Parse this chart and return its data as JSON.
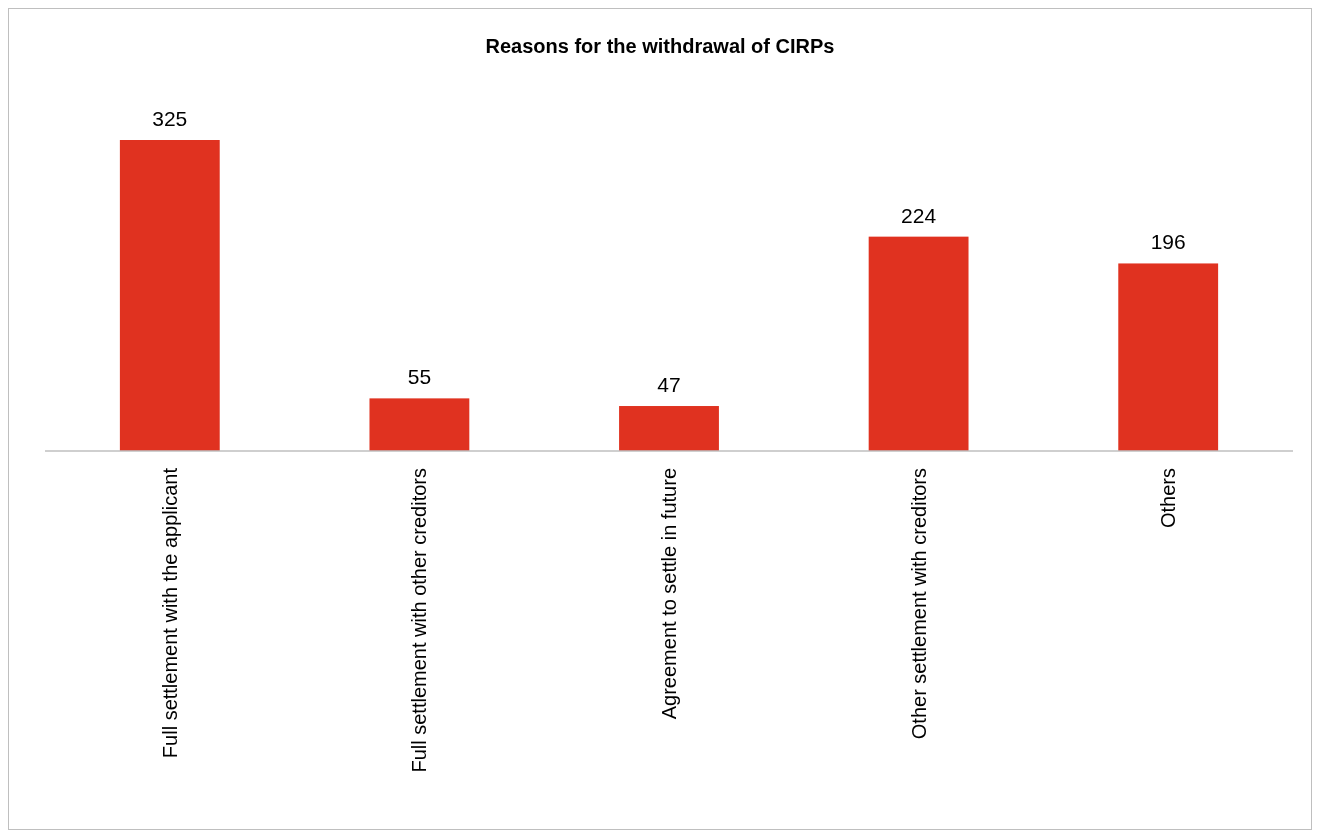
{
  "chart_data": {
    "type": "bar",
    "title": "Reasons for the withdrawal of CIRPs",
    "categories": [
      "Full settlement with the applicant",
      "Full settlement with other creditors",
      "Agreement to settle in future",
      "Other settlement with creditors",
      "Others"
    ],
    "values": [
      325,
      55,
      47,
      224,
      196
    ],
    "color": "#e03220",
    "data_labels": true
  }
}
